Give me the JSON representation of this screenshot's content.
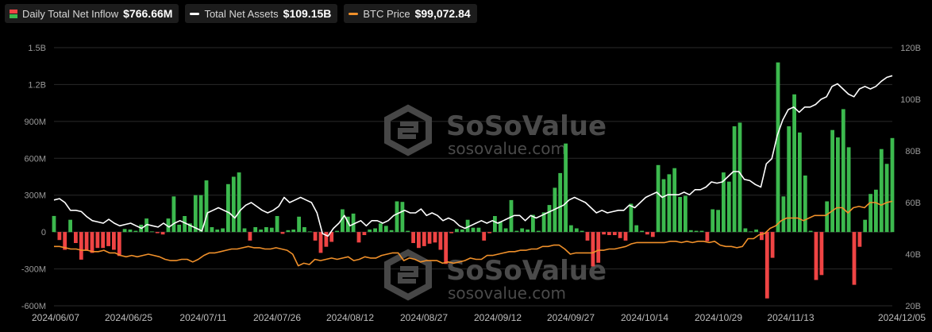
{
  "legend": [
    {
      "name": "Daily Total Net Inflow",
      "value": "$766.66M",
      "kind": "bar"
    },
    {
      "name": "Total Net Assets",
      "value": "$109.15B",
      "kind": "line",
      "color": "#ffffff"
    },
    {
      "name": "BTC Price",
      "value": "$99,072.84",
      "kind": "line",
      "color": "#f0902a"
    }
  ],
  "watermark": {
    "logo_text": "SoSoValue",
    "sub_text": "sosovalue.com"
  },
  "colors": {
    "inflow_positive": "#3cb94e",
    "inflow_negative": "#ef4444",
    "net_assets": "#ffffff",
    "btc_price": "#f0902a",
    "grid": "#2a2a2a",
    "background": "#000000"
  },
  "chart_data": {
    "type": "bar",
    "grid": true,
    "left_axis": {
      "ticks": [
        "1.5B",
        "1.2B",
        "900M",
        "600M",
        "300M",
        "0",
        "-300M",
        "-600M"
      ],
      "ylim": [
        -600,
        1500
      ],
      "unit": "M"
    },
    "right_axis": {
      "ticks": [
        "120B",
        "100B",
        "80B",
        "60B",
        "40B",
        "20B"
      ],
      "ylim": [
        20,
        120
      ],
      "unit": "B"
    },
    "x_ticks": [
      "2024/06/07",
      "2024/06/25",
      "2024/07/11",
      "2024/07/26",
      "2024/08/12",
      "2024/08/27",
      "2024/09/12",
      "2024/09/27",
      "2024/10/14",
      "2024/10/29",
      "2024/11/13",
      "2024/12/05"
    ],
    "series": [
      {
        "name": "Daily Total Net Inflow",
        "type": "bar",
        "values": [
          131,
          -65,
          -145,
          100,
          -90,
          -225,
          -145,
          -170,
          -130,
          -130,
          -115,
          -145,
          -195,
          25,
          20,
          10,
          60,
          110,
          5,
          -10,
          -20,
          110,
          290,
          60,
          130,
          70,
          300,
          300,
          420,
          40,
          20,
          30,
          390,
          450,
          485,
          30,
          -70,
          40,
          20,
          40,
          35,
          130,
          -15,
          15,
          20,
          125,
          40,
          5,
          -70,
          -170,
          -120,
          -80,
          10,
          185,
          125,
          150,
          -85,
          -25,
          20,
          30,
          70,
          50,
          15,
          250,
          245,
          10,
          -90,
          -130,
          -115,
          -95,
          -85,
          -145,
          -260,
          -10,
          25,
          20,
          100,
          35,
          35,
          -70,
          -10,
          130,
          85,
          30,
          260,
          10,
          30,
          20,
          140,
          10,
          160,
          220,
          360,
          480,
          720,
          55,
          30,
          10,
          -70,
          -280,
          -250,
          -20,
          -25,
          -25,
          -50,
          -70,
          230,
          55,
          10,
          -20,
          -40,
          545,
          430,
          470,
          520,
          285,
          295,
          15,
          10,
          10,
          -75,
          185,
          180,
          485,
          410,
          860,
          890,
          30,
          5,
          20,
          -65,
          -540,
          -210,
          1380,
          290,
          860,
          1120,
          810,
          460,
          10,
          -390,
          -350,
          250,
          830,
          770,
          1000,
          690,
          -430,
          -120,
          100,
          310,
          345,
          675,
          555,
          765
        ]
      },
      {
        "name": "Total Net Assets",
        "type": "line",
        "values": [
          61,
          61.5,
          60,
          57,
          57,
          56.5,
          54.5,
          53,
          52.5,
          52,
          53.5,
          52,
          51,
          51.5,
          52,
          51,
          50,
          51.5,
          51,
          50.5,
          52,
          50.5,
          52,
          53,
          52,
          51,
          50,
          49,
          56,
          57,
          58,
          57,
          56,
          54,
          57,
          59,
          60,
          58.5,
          57,
          56,
          57,
          58.5,
          62,
          60,
          61,
          62,
          61,
          60,
          56,
          48,
          47,
          50,
          52,
          55,
          51,
          52,
          53,
          51,
          53,
          53,
          52,
          53,
          55,
          56,
          57,
          56,
          56,
          57.5,
          55,
          56,
          55,
          53,
          54,
          53,
          51,
          50,
          51,
          52,
          53,
          52,
          53,
          52,
          53,
          54,
          55,
          55,
          53,
          55,
          54,
          55,
          56,
          57,
          58,
          59,
          61,
          62,
          61,
          60,
          58,
          56,
          57,
          56,
          56.5,
          57,
          57,
          59,
          58,
          60,
          62,
          63,
          64,
          62,
          63,
          63,
          63,
          64,
          63,
          65,
          65,
          66,
          68,
          67.5,
          68,
          70,
          72,
          72,
          69,
          68.5,
          67,
          66,
          75,
          77,
          86,
          92,
          96,
          97,
          95,
          97,
          97,
          98,
          100,
          101,
          105,
          106,
          104,
          102,
          101,
          104,
          105,
          104,
          105,
          107,
          108.5,
          109.15
        ]
      },
      {
        "name": "BTC Price",
        "type": "line",
        "values": [
          43,
          43,
          42.5,
          42,
          42,
          41.5,
          41.5,
          41,
          41,
          41.5,
          40.5,
          40.5,
          39.5,
          39,
          39.5,
          39,
          39.5,
          40,
          39.5,
          39,
          38,
          37.5,
          37.5,
          38,
          38,
          37,
          38,
          39.5,
          40.5,
          40.5,
          41,
          41.5,
          42,
          42,
          42.5,
          43,
          42.5,
          42.5,
          42,
          42,
          42.5,
          42,
          41.5,
          40,
          35.5,
          36.5,
          36,
          38,
          37.5,
          38,
          38.5,
          38,
          38.5,
          39,
          37.5,
          38,
          39,
          38.5,
          38.5,
          39.5,
          40,
          40.5,
          40.5,
          37.5,
          38.5,
          38,
          37,
          37.5,
          37.5,
          37.5,
          36.5,
          37,
          36.5,
          37,
          37.5,
          38.5,
          38,
          38,
          39.5,
          39.5,
          40,
          40.5,
          41,
          41,
          41.5,
          41.5,
          42,
          42,
          43,
          43,
          43.5,
          43.5,
          42,
          40,
          40.5,
          40.5,
          40.5,
          40.5,
          41.5,
          41.5,
          42,
          42,
          42.5,
          43,
          44,
          44.5,
          44.5,
          44.5,
          44.5,
          44.5,
          44.5,
          45,
          45,
          44.5,
          45,
          44.5,
          45,
          45,
          44.5,
          45,
          43.5,
          43,
          43,
          42.5,
          43,
          46,
          46,
          47.5,
          48,
          50,
          51,
          53,
          54,
          54,
          54,
          53,
          54,
          55,
          55,
          55,
          56.5,
          58,
          58,
          56,
          58,
          58.5,
          58,
          60,
          60,
          59,
          60,
          60.5
        ]
      }
    ]
  }
}
